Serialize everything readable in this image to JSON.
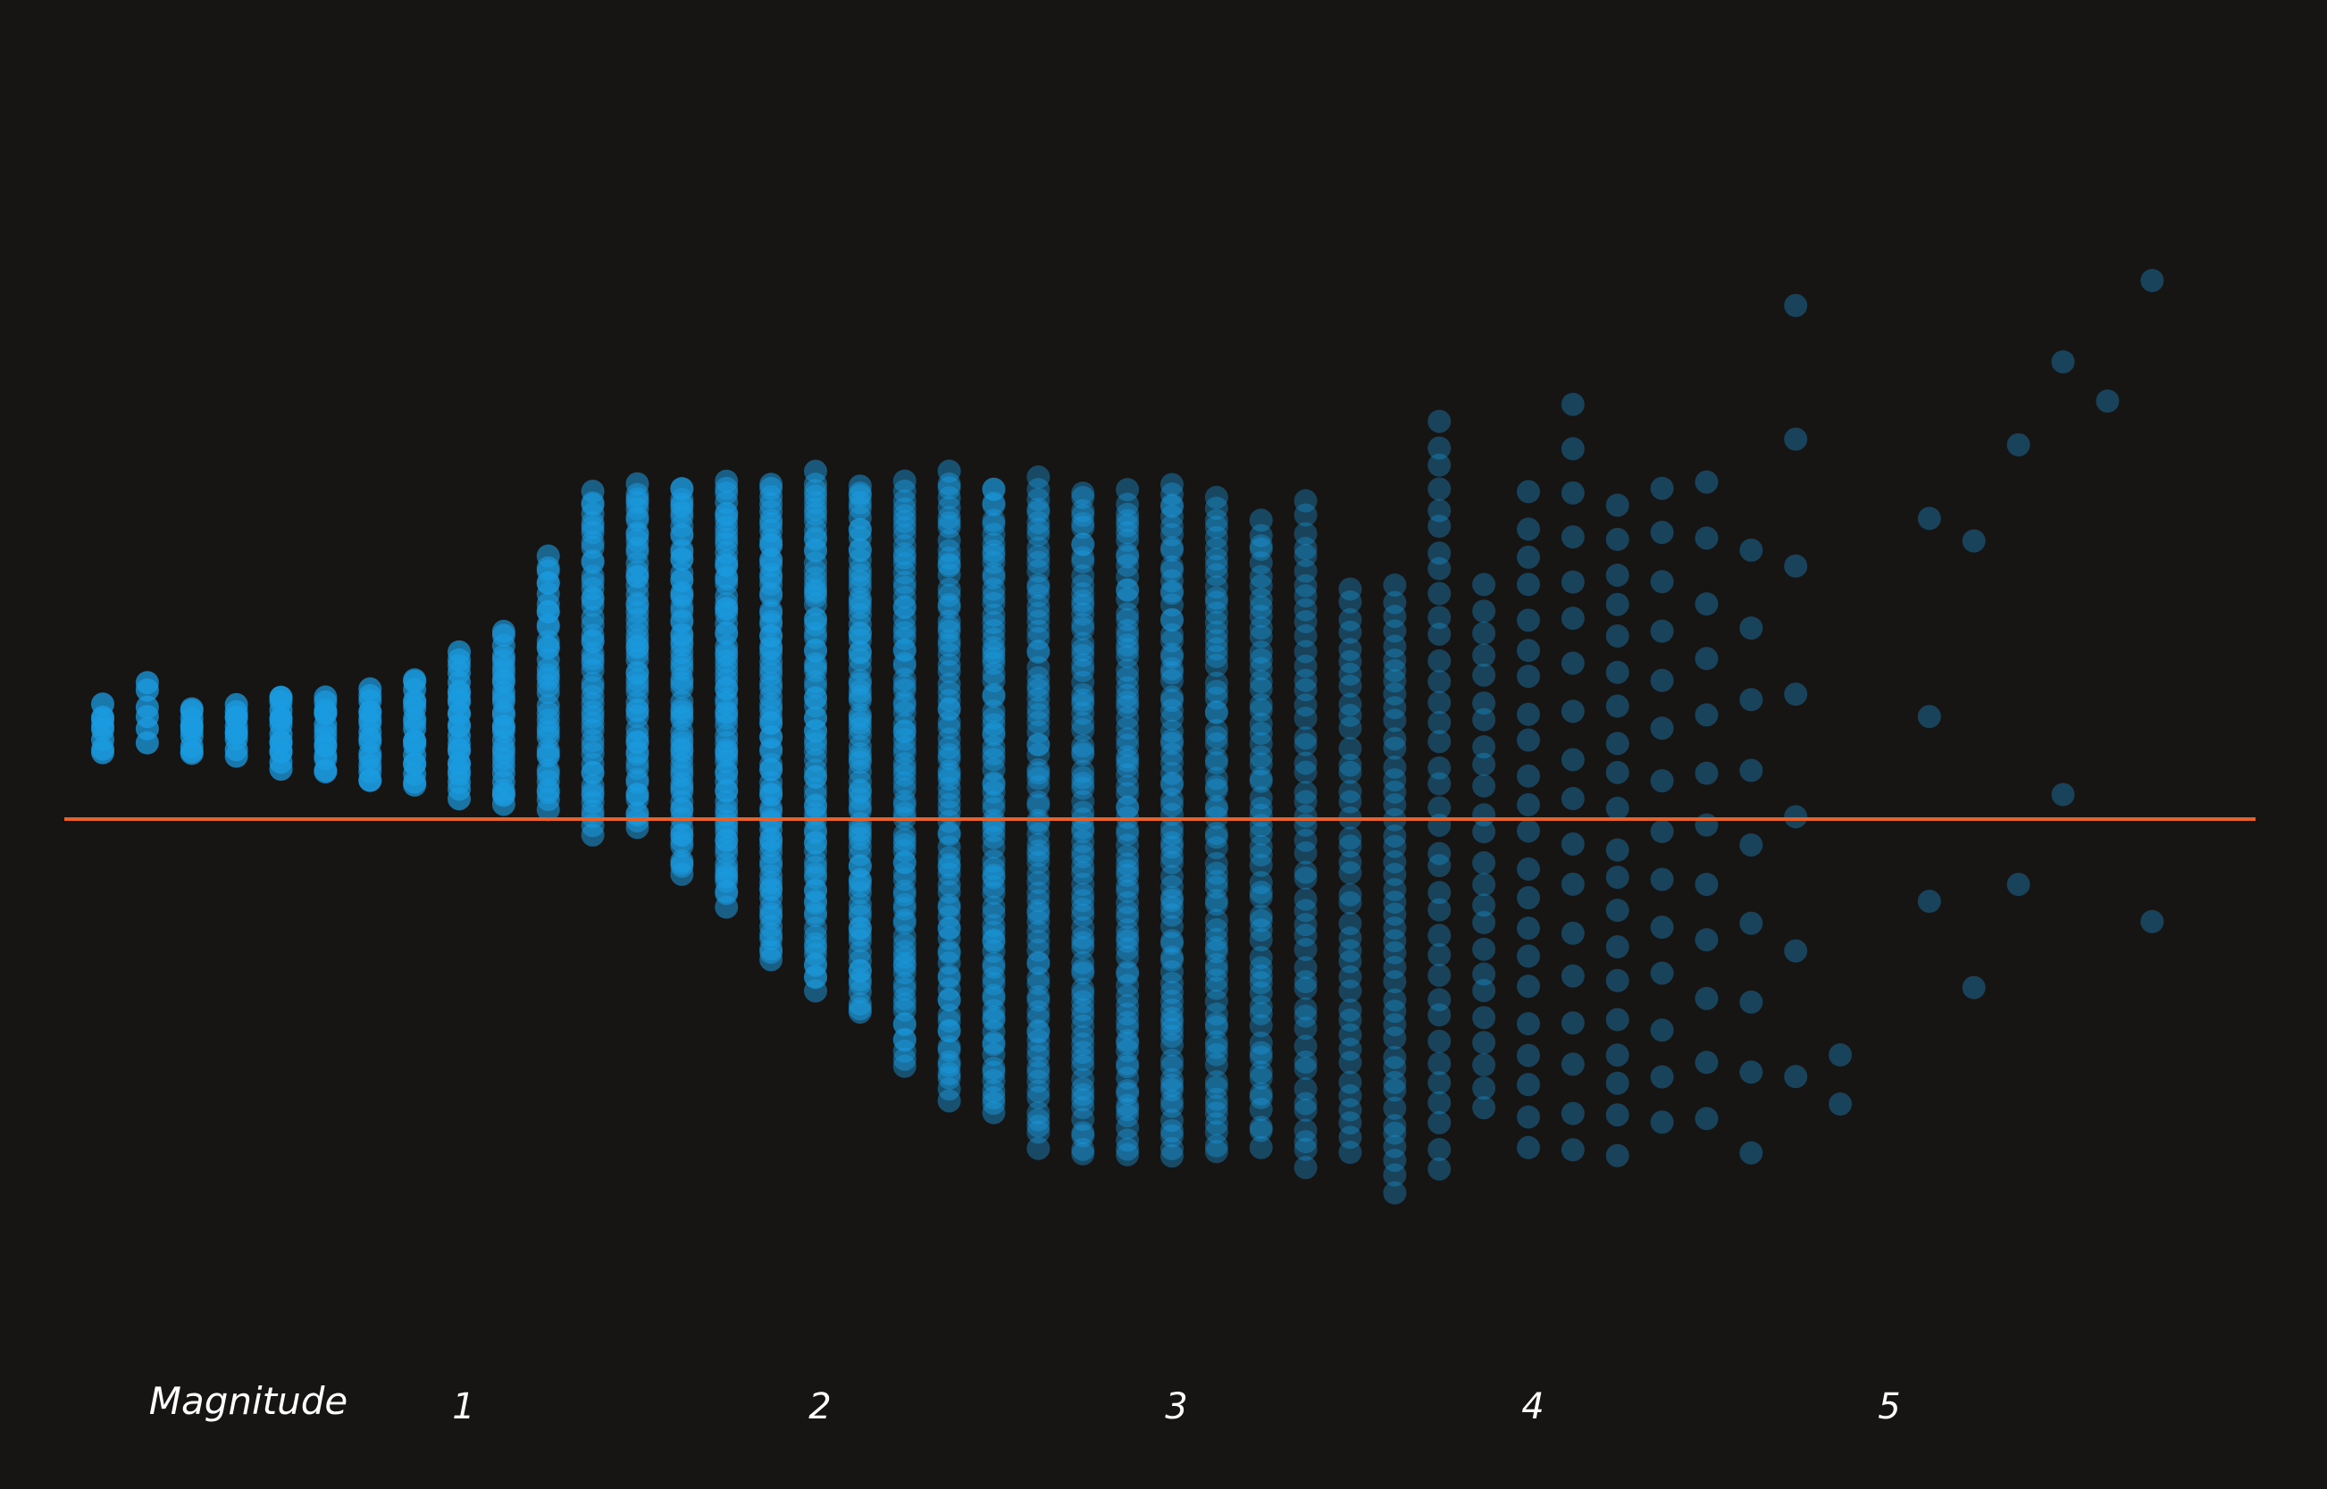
{
  "colors": {
    "background": "#171414",
    "point": "#1b9be0",
    "reference_line": "#e8602a",
    "text": "#ffffff"
  },
  "chart_data": {
    "type": "scatter",
    "title": "",
    "xlabel": "Magnitude",
    "ylabel": "",
    "xlim": [
      -0.15,
      5.95
    ],
    "ylim": [
      -1.0,
      1.0
    ],
    "x_tick_values": [
      1,
      2,
      3,
      4,
      5
    ],
    "x_tick_labels": [
      "1",
      "2",
      "3",
      "4",
      "5"
    ],
    "reference_line_y": 0.0,
    "grid": false,
    "legend": "none",
    "point_columns": [
      {
        "x": 0.0,
        "y_min": 0.14,
        "y_max": 0.24,
        "count": 8,
        "opacity": 0.75
      },
      {
        "x": 0.125,
        "y_min": 0.16,
        "y_max": 0.3,
        "count": 6,
        "opacity": 0.75
      },
      {
        "x": 0.25,
        "y_min": 0.14,
        "y_max": 0.24,
        "count": 10,
        "opacity": 0.75
      },
      {
        "x": 0.375,
        "y_min": 0.14,
        "y_max": 0.25,
        "count": 10,
        "opacity": 0.75
      },
      {
        "x": 0.5,
        "y_min": 0.11,
        "y_max": 0.27,
        "count": 14,
        "opacity": 0.75
      },
      {
        "x": 0.625,
        "y_min": 0.1,
        "y_max": 0.27,
        "count": 14,
        "opacity": 0.72
      },
      {
        "x": 0.75,
        "y_min": 0.08,
        "y_max": 0.28,
        "count": 16,
        "opacity": 0.72
      },
      {
        "x": 0.875,
        "y_min": 0.07,
        "y_max": 0.3,
        "count": 18,
        "opacity": 0.7
      },
      {
        "x": 1.0,
        "y_min": 0.05,
        "y_max": 0.35,
        "count": 24,
        "opacity": 0.7
      },
      {
        "x": 1.125,
        "y_min": 0.03,
        "y_max": 0.4,
        "count": 28,
        "opacity": 0.65
      },
      {
        "x": 1.25,
        "y_min": 0.02,
        "y_max": 0.56,
        "count": 36,
        "opacity": 0.6
      },
      {
        "x": 1.375,
        "y_min": -0.03,
        "y_max": 0.7,
        "count": 48,
        "opacity": 0.55
      },
      {
        "x": 1.5,
        "y_min": -0.02,
        "y_max": 0.72,
        "count": 55,
        "opacity": 0.55
      },
      {
        "x": 1.625,
        "y_min": -0.12,
        "y_max": 0.72,
        "count": 65,
        "opacity": 0.55
      },
      {
        "x": 1.75,
        "y_min": -0.18,
        "y_max": 0.72,
        "count": 70,
        "opacity": 0.55
      },
      {
        "x": 1.875,
        "y_min": -0.3,
        "y_max": 0.72,
        "count": 75,
        "opacity": 0.55
      },
      {
        "x": 2.0,
        "y_min": -0.36,
        "y_max": 0.74,
        "count": 78,
        "opacity": 0.5
      },
      {
        "x": 2.125,
        "y_min": -0.42,
        "y_max": 0.72,
        "count": 78,
        "opacity": 0.5
      },
      {
        "x": 2.25,
        "y_min": -0.53,
        "y_max": 0.72,
        "count": 80,
        "opacity": 0.45
      },
      {
        "x": 2.375,
        "y_min": -0.6,
        "y_max": 0.74,
        "count": 80,
        "opacity": 0.45
      },
      {
        "x": 2.5,
        "y_min": -0.63,
        "y_max": 0.72,
        "count": 80,
        "opacity": 0.45
      },
      {
        "x": 2.625,
        "y_min": -0.7,
        "y_max": 0.73,
        "count": 80,
        "opacity": 0.4
      },
      {
        "x": 2.75,
        "y_min": -0.72,
        "y_max": 0.71,
        "count": 80,
        "opacity": 0.4
      },
      {
        "x": 2.875,
        "y_min": -0.72,
        "y_max": 0.7,
        "count": 80,
        "opacity": 0.4
      },
      {
        "x": 3.0,
        "y_min": -0.72,
        "y_max": 0.72,
        "count": 78,
        "opacity": 0.4
      },
      {
        "x": 3.125,
        "y_min": -0.72,
        "y_max": 0.69,
        "count": 70,
        "opacity": 0.38
      },
      {
        "x": 3.25,
        "y_min": -0.7,
        "y_max": 0.64,
        "count": 60,
        "opacity": 0.38
      },
      {
        "x": 3.375,
        "y_min": -0.75,
        "y_max": 0.68,
        "count": 50,
        "opacity": 0.35
      },
      {
        "x": 3.5,
        "y_min": -0.72,
        "y_max": 0.5,
        "count": 40,
        "opacity": 0.35
      },
      {
        "x": 3.625,
        "y_min": -0.8,
        "y_max": 0.5,
        "count": 45,
        "opacity": 0.35
      },
      {
        "x": 3.75,
        "y_min": -0.75,
        "y_max": 0.85,
        "count": 36,
        "opacity": 0.35
      },
      {
        "x": 3.875,
        "y_min": -0.62,
        "y_max": 0.5,
        "count": 24,
        "opacity": 0.35
      },
      {
        "x": 4.0,
        "y_min": -0.7,
        "y_max": 0.7,
        "count": 22,
        "opacity": 0.35
      },
      {
        "x": 4.125,
        "y_min": -0.72,
        "y_max": 0.9,
        "count": 18,
        "opacity": 0.35
      },
      {
        "x": 4.25,
        "y_min": -0.72,
        "y_max": 0.68,
        "count": 20,
        "opacity": 0.35
      },
      {
        "x": 4.375,
        "y_min": -0.66,
        "y_max": 0.72,
        "count": 14,
        "opacity": 0.35
      },
      {
        "x": 4.5,
        "y_min": -0.64,
        "y_max": 0.72,
        "count": 12,
        "opacity": 0.35
      },
      {
        "x": 4.625,
        "y_min": -0.71,
        "y_max": 0.58,
        "count": 9,
        "opacity": 0.35
      },
      {
        "x": 4.75,
        "y_min": -0.55,
        "y_max": 1.1,
        "count": 7,
        "opacity": 0.35
      },
      {
        "x": 4.875,
        "y_min": -0.62,
        "y_max": -0.5,
        "count": 2,
        "opacity": 0.35
      },
      {
        "x": 5.125,
        "y_min": -0.18,
        "y_max": 0.64,
        "count": 3,
        "opacity": 0.35
      },
      {
        "x": 5.25,
        "y_min": -0.36,
        "y_max": 0.6,
        "count": 2,
        "opacity": 0.35
      },
      {
        "x": 5.375,
        "y_min": -0.15,
        "y_max": 0.8,
        "count": 2,
        "opacity": 0.35
      },
      {
        "x": 5.5,
        "y_min": 0.06,
        "y_max": 0.98,
        "count": 2,
        "opacity": 0.35
      },
      {
        "x": 5.625,
        "y_min": 0.9,
        "y_max": 0.9,
        "count": 1,
        "opacity": 0.35
      },
      {
        "x": 5.75,
        "y_min": -0.22,
        "y_max": 1.16,
        "count": 2,
        "opacity": 0.35
      }
    ]
  }
}
